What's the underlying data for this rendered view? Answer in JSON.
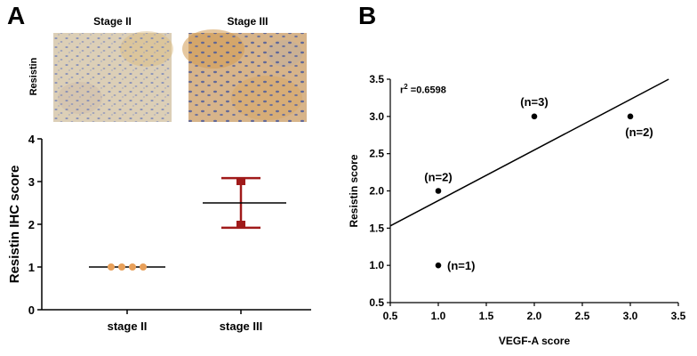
{
  "panel_a": {
    "letter": "A",
    "image_titles": [
      "Stage II",
      "Stage III"
    ],
    "image_row_label": "Resistin"
  },
  "panel_b": {
    "letter": "B",
    "r2_label": "r",
    "r2_sup": "2",
    "r2_value": " =0.6598"
  },
  "colors": {
    "stage2_points": "#e8a05a",
    "stage3_bars": "#a01a1a",
    "line": "#000000"
  },
  "chart_data": [
    {
      "type": "scatter",
      "title": "",
      "xlabel": "",
      "ylabel": "Resistin IHC score",
      "categories": [
        "stage II",
        "stage III"
      ],
      "ylim": [
        0,
        4
      ],
      "yticks": [
        0,
        1,
        2,
        3,
        4
      ],
      "series": [
        {
          "name": "stage II",
          "values": [
            1,
            1,
            1,
            1
          ],
          "mean": 1.0
        },
        {
          "name": "stage III",
          "values": [
            2,
            2,
            3,
            3
          ],
          "mean": 2.5,
          "error_low": 1.92,
          "error_high": 3.08
        }
      ]
    },
    {
      "type": "scatter",
      "title": "",
      "xlabel": "VEGF-A score",
      "ylabel": "Resistin score",
      "xlim": [
        0.5,
        3.5
      ],
      "ylim": [
        0.5,
        3.5
      ],
      "xticks": [
        "0.5",
        "1.0",
        "1.5",
        "2.0",
        "2.5",
        "3.0",
        "3.5"
      ],
      "yticks": [
        "0.5",
        "1.0",
        "1.5",
        "2.0",
        "2.5",
        "3.0",
        "3.5"
      ],
      "points": [
        {
          "x": 1.0,
          "y": 1.0,
          "label": "(n=1)"
        },
        {
          "x": 1.0,
          "y": 2.0,
          "label": "(n=2)"
        },
        {
          "x": 2.0,
          "y": 3.0,
          "label": "(n=3)"
        },
        {
          "x": 3.0,
          "y": 3.0,
          "label": "(n=2)"
        }
      ],
      "fit_line": {
        "x": [
          0.5,
          3.4
        ],
        "y": [
          1.53,
          3.5
        ]
      },
      "r_squared": 0.6598
    }
  ]
}
